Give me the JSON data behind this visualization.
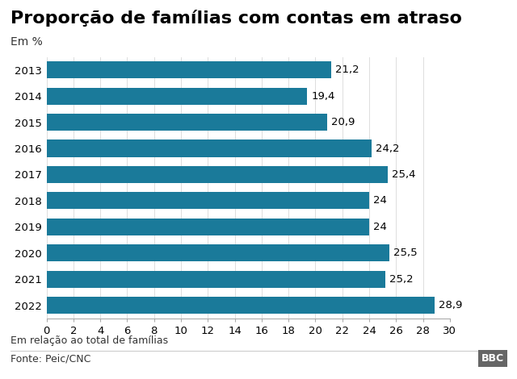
{
  "title": "Proporção de famílias com contas em atraso",
  "subtitle": "Em %",
  "years": [
    "2013",
    "2014",
    "2015",
    "2016",
    "2017",
    "2018",
    "2019",
    "2020",
    "2021",
    "2022"
  ],
  "values": [
    21.2,
    19.4,
    20.9,
    24.2,
    25.4,
    24.0,
    24.0,
    25.5,
    25.2,
    28.9
  ],
  "labels": [
    "21,2",
    "19,4",
    "20,9",
    "24,2",
    "25,4",
    "24",
    "24",
    "25,5",
    "25,2",
    "28,9"
  ],
  "bar_color": "#1a7a9a",
  "xlim": [
    0,
    30
  ],
  "xticks": [
    0,
    2,
    4,
    6,
    8,
    10,
    12,
    14,
    16,
    18,
    20,
    22,
    24,
    26,
    28,
    30
  ],
  "footnote1": "Em relação ao total de famílias",
  "footnote2": "Fonte: Peic/CNC",
  "bbc_label": "BBC",
  "background_color": "#ffffff",
  "title_fontsize": 16,
  "subtitle_fontsize": 10,
  "label_fontsize": 9.5,
  "tick_fontsize": 9.5,
  "footnote_fontsize": 9
}
